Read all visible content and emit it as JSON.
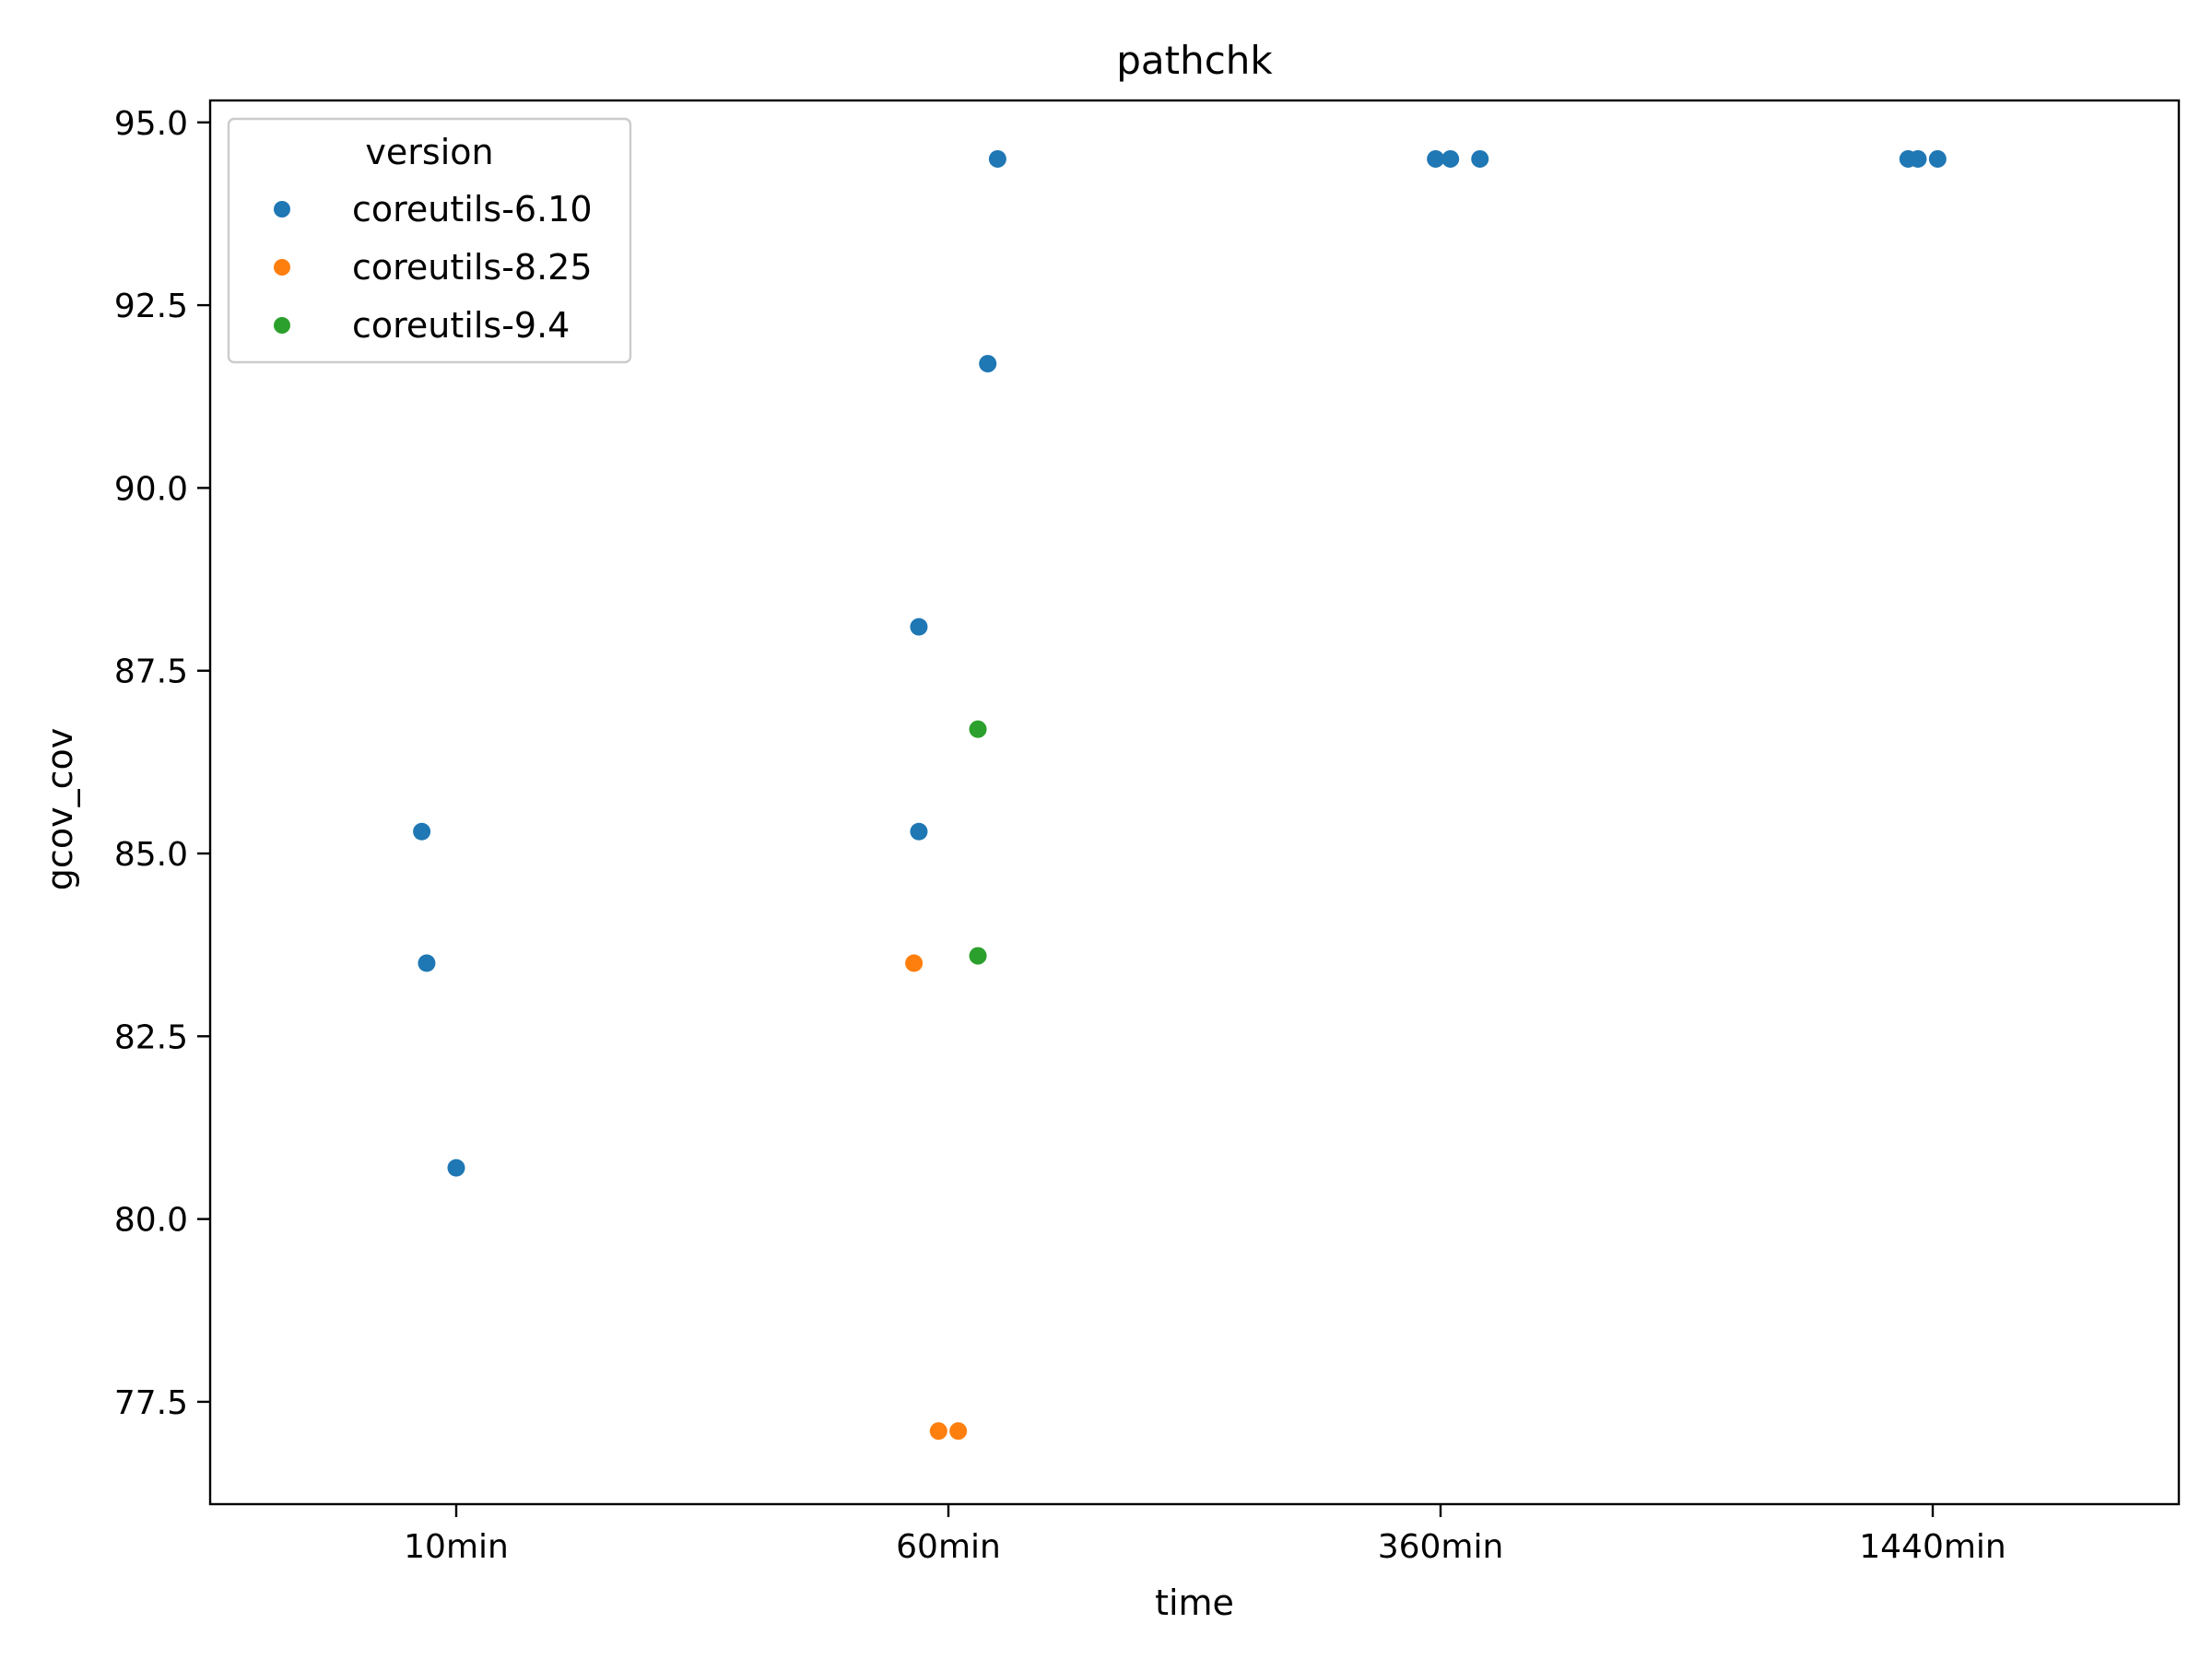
{
  "chart_data": {
    "type": "scatter",
    "title": "pathchk",
    "xlabel": "time",
    "ylabel": "gcov_cov",
    "categories": [
      "10min",
      "60min",
      "360min",
      "1440min"
    ],
    "ylim": [
      76.1,
      95.3
    ],
    "yticks": [
      "77.5",
      "80.0",
      "82.5",
      "85.0",
      "87.5",
      "90.0",
      "92.5",
      "95.0"
    ],
    "ytick_values": [
      77.5,
      80.0,
      82.5,
      85.0,
      87.5,
      90.0,
      92.5,
      95.0
    ],
    "grid": false,
    "legend": {
      "title": "version",
      "placement": "top-left"
    },
    "series": [
      {
        "name": "coreutils-6.10",
        "color": "#1f77b4",
        "points": [
          {
            "x": "10min",
            "jitter": -0.07,
            "y": 85.3
          },
          {
            "x": "10min",
            "jitter": -0.06,
            "y": 83.5
          },
          {
            "x": "10min",
            "jitter": 0.0,
            "y": 80.7
          },
          {
            "x": "60min",
            "jitter": -0.06,
            "y": 88.1
          },
          {
            "x": "60min",
            "jitter": -0.06,
            "y": 85.3
          },
          {
            "x": "60min",
            "jitter": 0.08,
            "y": 91.7
          },
          {
            "x": "60min",
            "jitter": 0.1,
            "y": 94.5
          },
          {
            "x": "360min",
            "jitter": -0.01,
            "y": 94.5
          },
          {
            "x": "360min",
            "jitter": 0.02,
            "y": 94.5
          },
          {
            "x": "360min",
            "jitter": 0.08,
            "y": 94.5
          },
          {
            "x": "1440min",
            "jitter": -0.05,
            "y": 94.5
          },
          {
            "x": "1440min",
            "jitter": -0.03,
            "y": 94.5
          },
          {
            "x": "1440min",
            "jitter": 0.01,
            "y": 94.5
          }
        ]
      },
      {
        "name": "coreutils-8.25",
        "color": "#ff7f0e",
        "points": [
          {
            "x": "60min",
            "jitter": -0.07,
            "y": 83.5
          },
          {
            "x": "60min",
            "jitter": -0.02,
            "y": 77.1
          },
          {
            "x": "60min",
            "jitter": 0.02,
            "y": 77.1
          }
        ]
      },
      {
        "name": "coreutils-9.4",
        "color": "#2ca02c",
        "points": [
          {
            "x": "60min",
            "jitter": 0.06,
            "y": 86.7
          },
          {
            "x": "60min",
            "jitter": 0.06,
            "y": 83.6
          }
        ]
      }
    ]
  }
}
